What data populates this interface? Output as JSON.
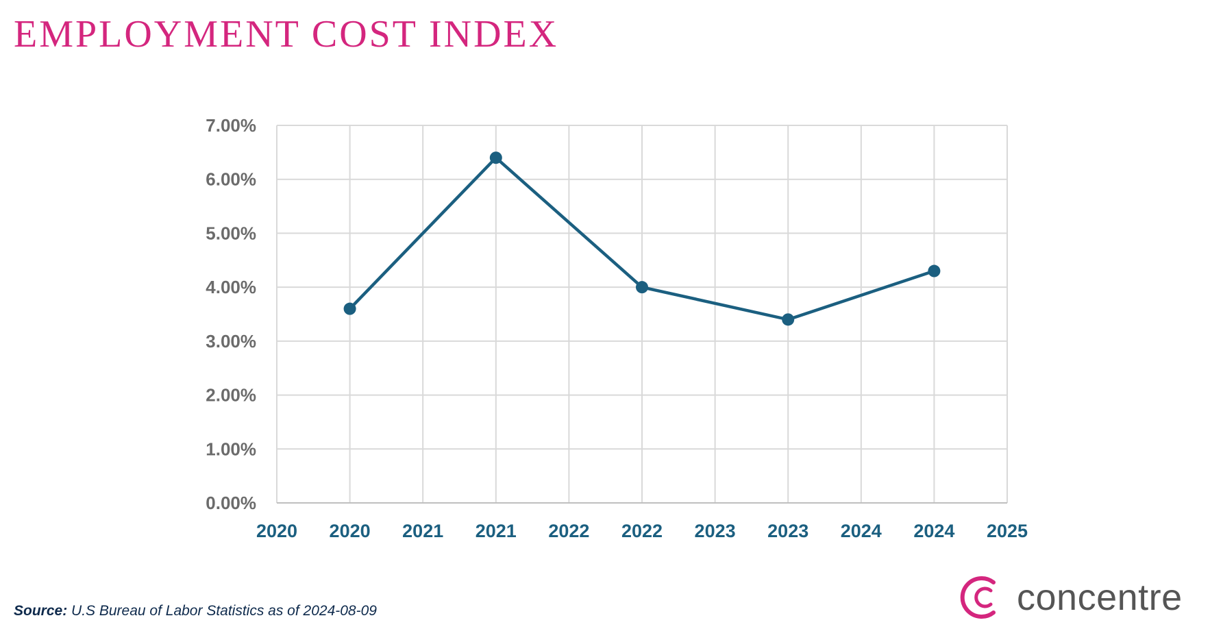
{
  "title": "EMPLOYMENT COST INDEX",
  "source": {
    "label": "Source:",
    "text": "U.S Bureau of Labor Statistics as of  2024-08-09"
  },
  "logo": {
    "text": "concentre",
    "color": "#d4267e"
  },
  "chart_data": {
    "type": "line",
    "title": "EMPLOYMENT COST INDEX",
    "xlabel": "",
    "ylabel": "",
    "xlim": [
      2020,
      2025
    ],
    "ylim": [
      0,
      7
    ],
    "grid": true,
    "x_tick_values": [
      2020,
      2020.5,
      2021,
      2021.5,
      2022,
      2022.5,
      2023,
      2023.5,
      2024,
      2024.5,
      2025
    ],
    "x_tick_labels": [
      "2020",
      "2020",
      "2021",
      "2021",
      "2022",
      "2022",
      "2023",
      "2023",
      "2024",
      "2024",
      "2025"
    ],
    "y_tick_values": [
      0,
      1,
      2,
      3,
      4,
      5,
      6,
      7
    ],
    "y_tick_labels": [
      "0.00%",
      "1.00%",
      "2.00%",
      "3.00%",
      "4.00%",
      "5.00%",
      "6.00%",
      "7.00%"
    ],
    "series": [
      {
        "x": [
          2020.5,
          2021.5,
          2022.5,
          2023.5,
          2024.5
        ],
        "values": [
          3.6,
          6.4,
          4.0,
          3.4,
          4.3
        ],
        "color": "#1b5f80"
      }
    ]
  }
}
